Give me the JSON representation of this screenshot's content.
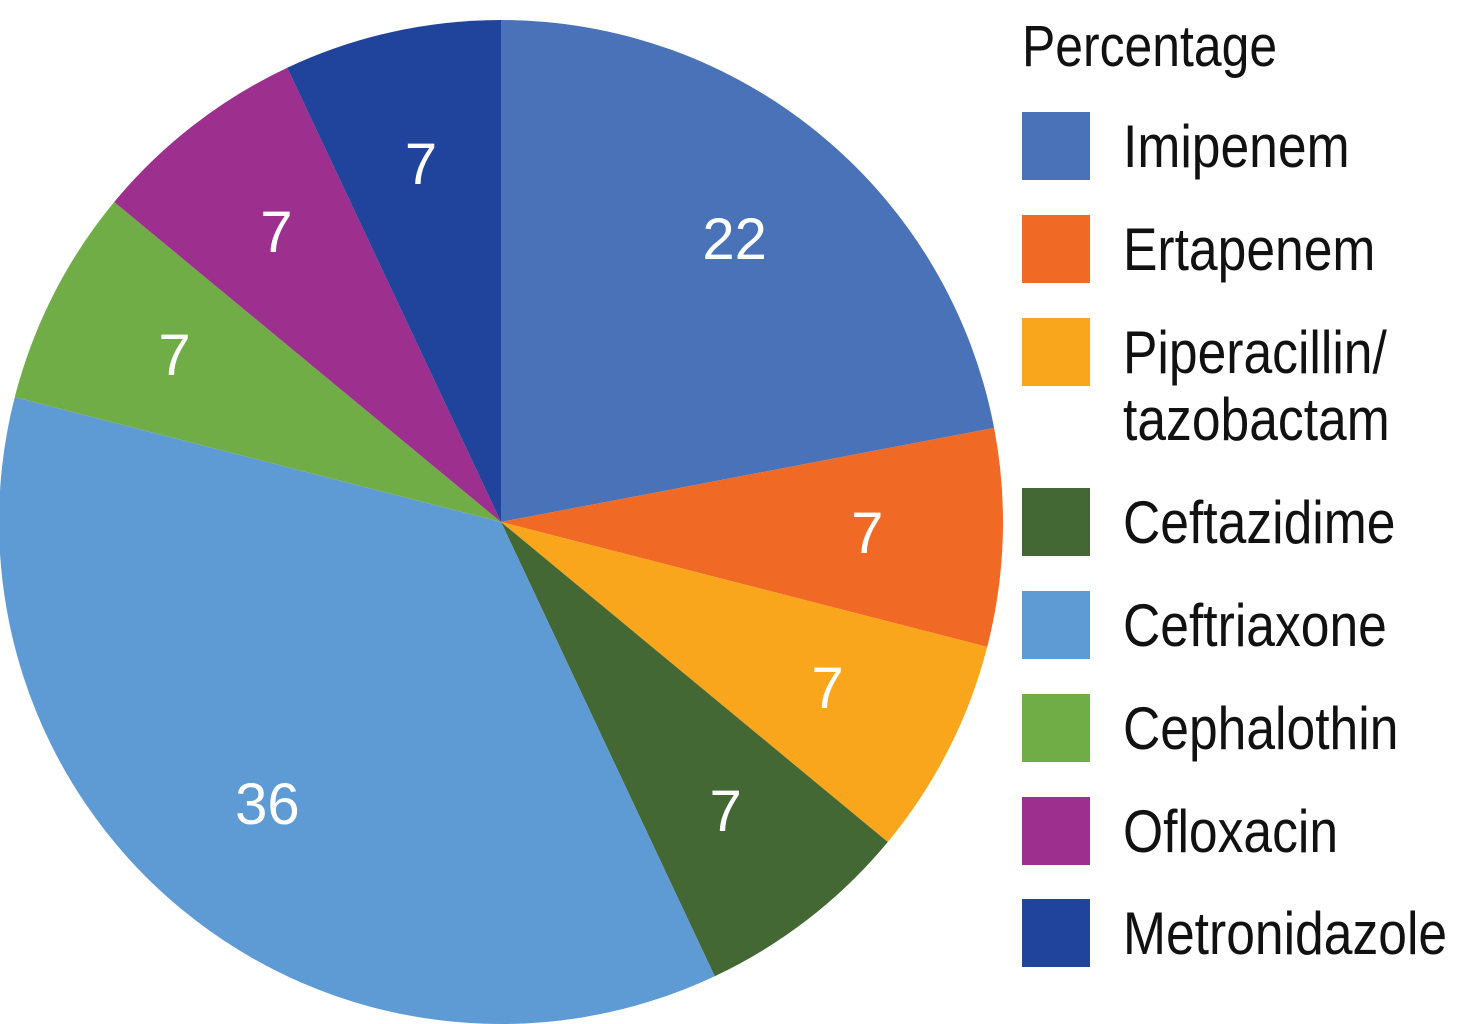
{
  "chart_data": {
    "type": "pie",
    "title": "",
    "legend_title": "Percentage",
    "legend_position": "right",
    "categories": [
      "Imipenem",
      "Ertapenem",
      "Piperacillin/\ntazobactam",
      "Ceftazidime",
      "Ceftriaxone",
      "Cephalothin",
      "Ofloxacin",
      "Metronidazole"
    ],
    "values": [
      22,
      7,
      7,
      7,
      36,
      7,
      7,
      7
    ],
    "data_labels": [
      "22",
      "7",
      "7",
      "7",
      "36",
      "7",
      "7",
      "7"
    ],
    "colors": [
      "#4a72b8",
      "#f06a26",
      "#f9a61c",
      "#436834",
      "#5e9bd4",
      "#70ad47",
      "#9d2f8e",
      "#20449b"
    ],
    "start_angle_deg": 0,
    "direction": "clockwise"
  }
}
